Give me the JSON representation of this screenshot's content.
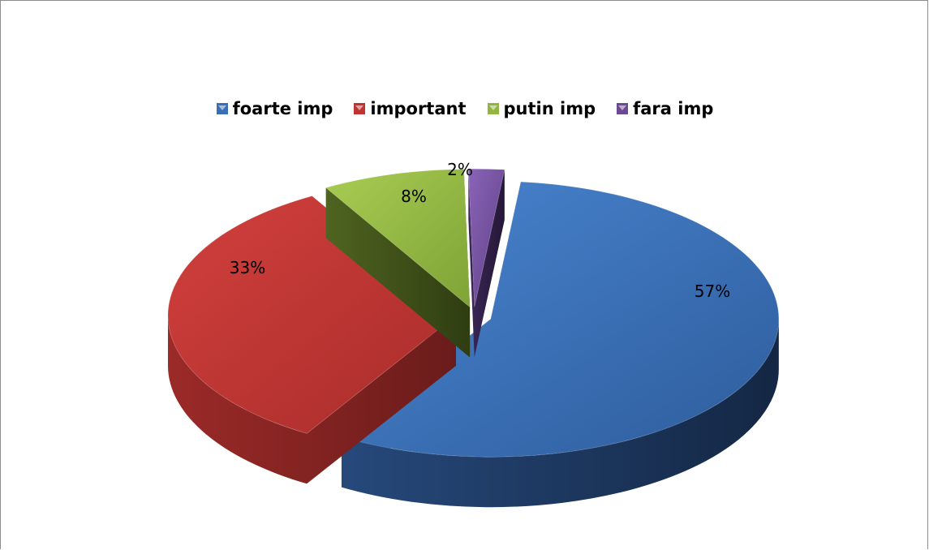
{
  "chart_data": {
    "type": "pie",
    "style": "3d-exploded",
    "categories": [
      "foarte imp",
      "important",
      "putin imp",
      "fara imp"
    ],
    "values": [
      57,
      33,
      8,
      2
    ],
    "labels": [
      "57%",
      "33%",
      "8%",
      "2%"
    ],
    "colors": [
      "#3a6fb5",
      "#be3432",
      "#92b441",
      "#6c4a93"
    ],
    "legend_position": "top"
  }
}
